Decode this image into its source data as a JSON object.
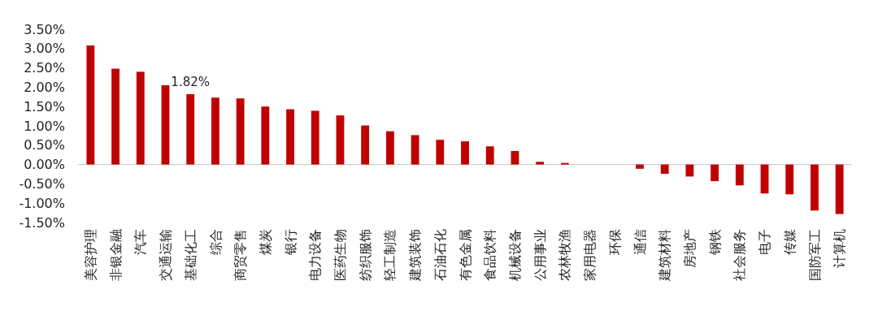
{
  "chart_data": {
    "type": "bar",
    "categories": [
      "美容护理",
      "非银金融",
      "汽车",
      "交通运输",
      "基础化工",
      "综合",
      "商贸零售",
      "煤炭",
      "银行",
      "电力设备",
      "医药生物",
      "纺织服饰",
      "轻工制造",
      "建筑装饰",
      "石油石化",
      "有色金属",
      "食品饮料",
      "机械设备",
      "公用事业",
      "农林牧渔",
      "家用电器",
      "环保",
      "通信",
      "建筑材料",
      "房地产",
      "钢铁",
      "社会服务",
      "电子",
      "传媒",
      "国防军工",
      "计算机"
    ],
    "values": [
      3.08,
      2.48,
      2.4,
      2.05,
      1.82,
      1.73,
      1.71,
      1.5,
      1.43,
      1.39,
      1.27,
      1.01,
      0.86,
      0.76,
      0.64,
      0.6,
      0.47,
      0.35,
      0.07,
      0.04,
      0,
      0,
      -0.11,
      -0.24,
      -0.31,
      -0.43,
      -0.54,
      -0.75,
      -0.77,
      -1.19,
      -1.28
    ],
    "value_labels": [
      null,
      null,
      null,
      null,
      "1.82%",
      null,
      null,
      null,
      null,
      null,
      null,
      null,
      null,
      null,
      null,
      null,
      null,
      null,
      null,
      null,
      null,
      null,
      null,
      null,
      null,
      null,
      null,
      null,
      null,
      null,
      null
    ],
    "color": "#c00000",
    "ylim": [
      -1.5,
      3.5
    ],
    "yticks": [
      {
        "value": -1.5,
        "label": "-1.50%"
      },
      {
        "value": -1,
        "label": "-1.00%"
      },
      {
        "value": -0.5,
        "label": "-0.50%"
      },
      {
        "value": 0,
        "label": "0.00%"
      },
      {
        "value": 0.5,
        "label": "0.50%"
      },
      {
        "value": 1,
        "label": "1.00%"
      },
      {
        "value": 1.5,
        "label": "1.50%"
      },
      {
        "value": 2,
        "label": "2.00%"
      },
      {
        "value": 2.5,
        "label": "2.50%"
      },
      {
        "value": 3,
        "label": "3.00%"
      },
      {
        "value": 3.5,
        "label": "3.50%"
      }
    ]
  }
}
